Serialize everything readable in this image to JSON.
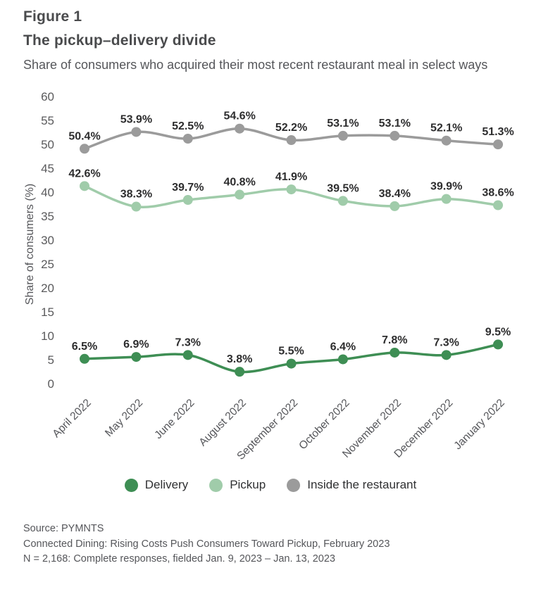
{
  "figure": {
    "label": "Figure 1",
    "title": "The pickup–delivery divide",
    "subtitle": "Share of consumers who acquired their most recent restaurant meal in select ways"
  },
  "chart_data": {
    "type": "line",
    "title": "The pickup–delivery divide",
    "xlabel": "",
    "ylabel": "Share of consumers (%)",
    "ylim": [
      0,
      60
    ],
    "yticks": [
      0,
      5,
      10,
      15,
      20,
      25,
      30,
      35,
      40,
      45,
      50,
      55,
      60
    ],
    "grid": false,
    "legend_position": "bottom",
    "data_labels": true,
    "label_format": "{value}%",
    "categories": [
      "April 2022",
      "May 2022",
      "June 2022",
      "August 2022",
      "September 2022",
      "October 2022",
      "November 2022",
      "December 2022",
      "January 2022"
    ],
    "series": [
      {
        "name": "Delivery",
        "color": "#3e8e54",
        "values": [
          6.5,
          6.9,
          7.3,
          3.8,
          5.5,
          6.4,
          7.8,
          7.3,
          9.5
        ]
      },
      {
        "name": "Pickup",
        "color": "#a0ccaa",
        "values": [
          42.6,
          38.3,
          39.7,
          40.8,
          41.9,
          39.5,
          38.4,
          39.9,
          38.6
        ]
      },
      {
        "name": "Inside the restaurant",
        "color": "#9b9b9b",
        "values": [
          50.4,
          53.9,
          52.5,
          54.6,
          52.2,
          53.1,
          53.1,
          52.1,
          51.3
        ]
      }
    ]
  },
  "footer": {
    "source": "Source: PYMNTS",
    "report": "Connected Dining: Rising Costs Push Consumers Toward Pickup, February 2023",
    "sample": "N = 2,168: Complete responses, fielded Jan. 9, 2023 – Jan. 13, 2023"
  }
}
